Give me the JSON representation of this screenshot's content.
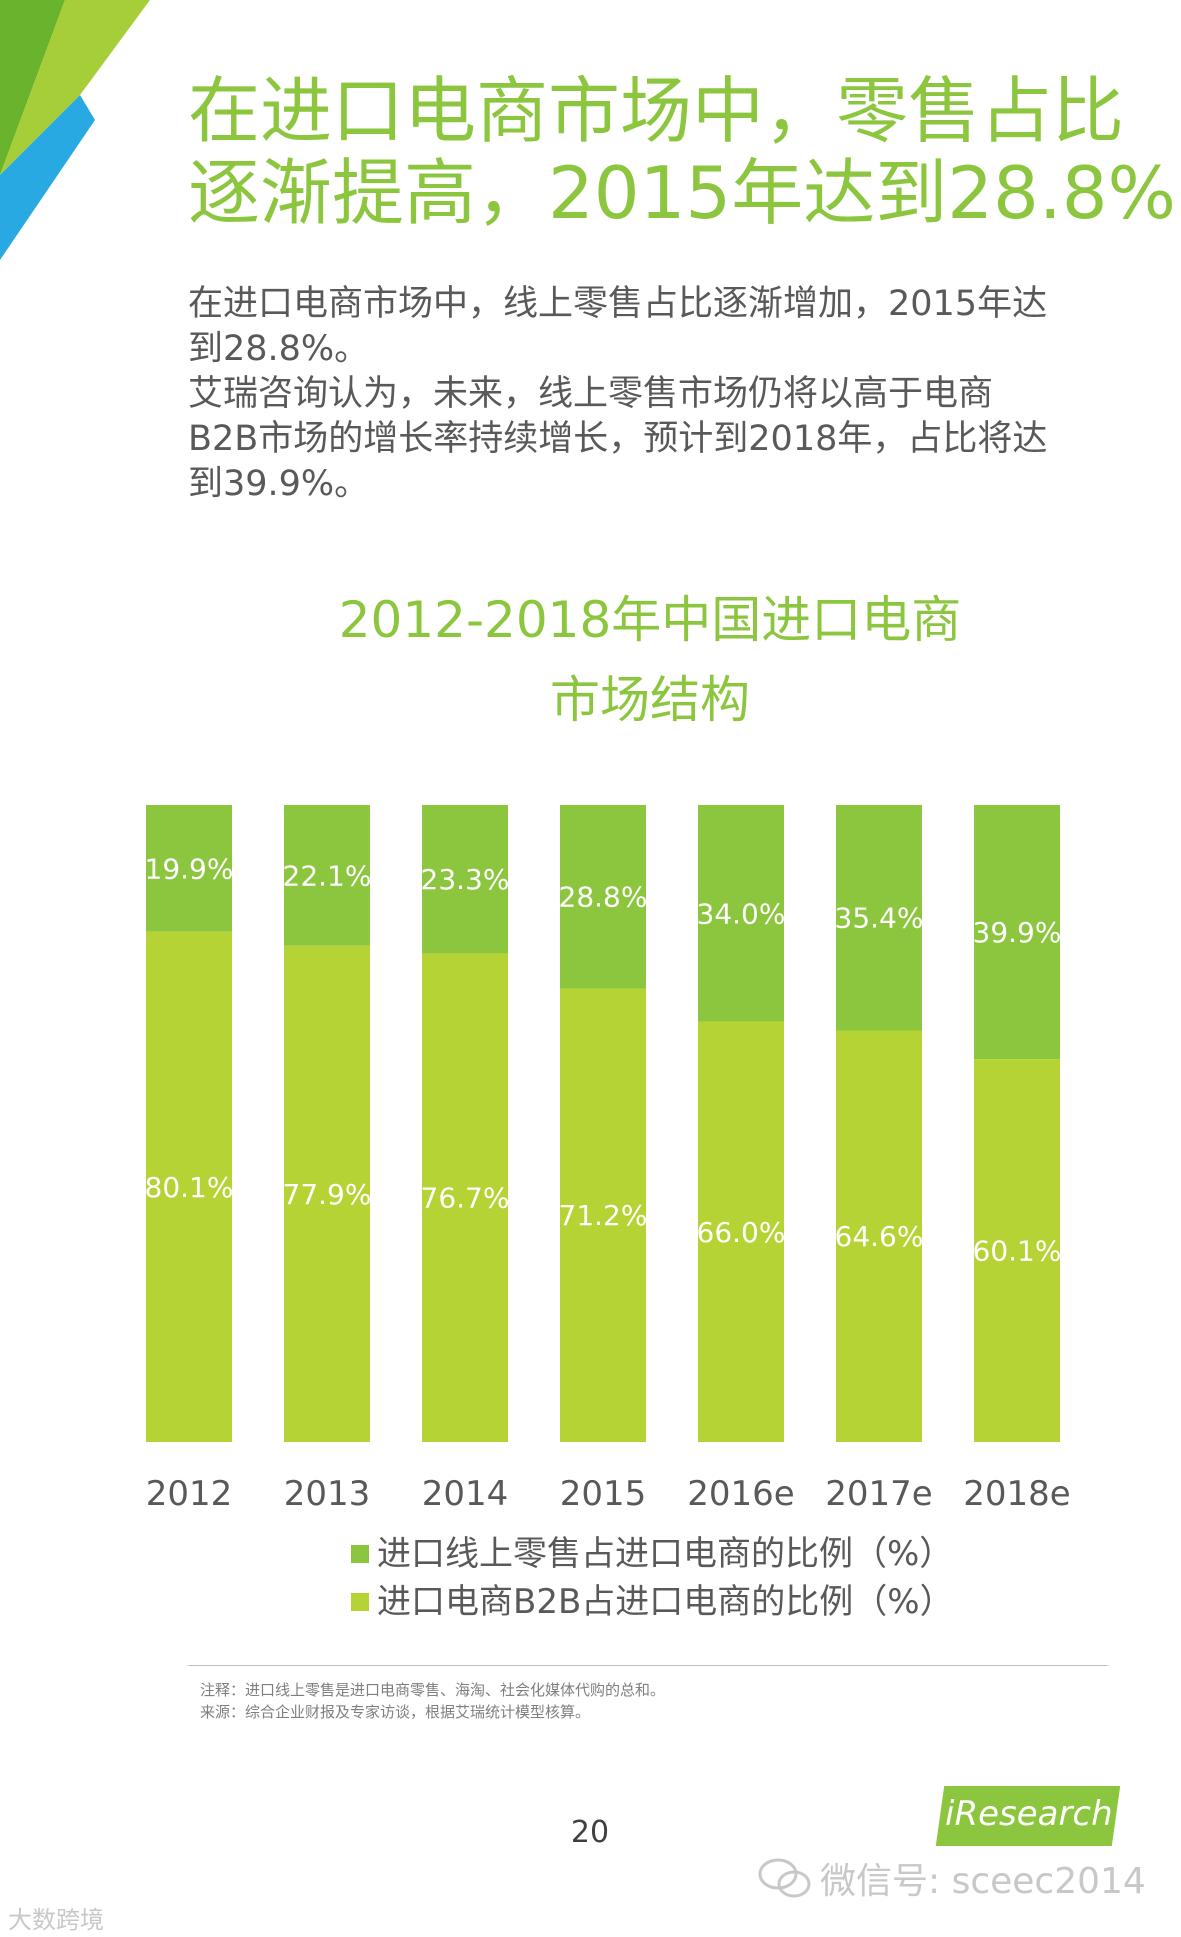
{
  "header": {
    "title_line1": "在进口电商市场中，零售占比",
    "title_line2": "逐渐提高，2015年达到28.8%"
  },
  "intro": {
    "line1": "在进口电商市场中，线上零售占比逐渐增加，2015年达",
    "line2": "到28.8%。",
    "line3": "艾瑞咨询认为，未来，线上零售市场仍将以高于电商",
    "line4": "B2B市场的增长率持续增长，预计到2018年，占比将达",
    "line5": "到39.9%。"
  },
  "footer": {
    "note_line1": "注释：进口线上零售是进口电商零售、海淘、社会化媒体代购的总和。",
    "note_line2": "来源：综合企业财报及专家访谈，根据艾瑞统计模型核算。",
    "page_number": "20",
    "logo_text": "iResearch",
    "watermark_text": "微信号: sceec2014",
    "bottom_left_text": "大数跨境"
  },
  "colors": {
    "accent": "#8cc63f",
    "corner_dark_green": "#6ab42d",
    "corner_blue": "#29a9e1",
    "retail_series": "#8cc63f",
    "b2b_series": "#b5d334",
    "body_text": "#595959"
  },
  "chart_data": {
    "type": "bar",
    "stacked": true,
    "title_line1": "2012-2018年中国进口电商",
    "title_line2": "市场结构",
    "categories": [
      "2012",
      "2013",
      "2014",
      "2015",
      "2016e",
      "2017e",
      "2018e"
    ],
    "series": [
      {
        "name": "进口线上零售占进口电商的比例（%）",
        "values": [
          19.9,
          22.1,
          23.3,
          28.8,
          34.0,
          35.4,
          39.9
        ],
        "labels": [
          "19.9%",
          "22.1%",
          "23.3%",
          "28.8%",
          "34.0%",
          "35.4%",
          "39.9%"
        ],
        "color": "#8cc63f"
      },
      {
        "name": "进口电商B2B占进口电商的比例（%）",
        "values": [
          80.1,
          77.9,
          76.7,
          71.2,
          66.0,
          64.6,
          60.1
        ],
        "labels": [
          "80.1%",
          "77.9%",
          "76.7%",
          "71.2%",
          "66.0%",
          "64.6%",
          "60.1%"
        ],
        "color": "#b5d334"
      }
    ],
    "ylim": [
      0,
      100
    ],
    "grid": false,
    "legend_position": "bottom",
    "xlabel": "",
    "ylabel": ""
  }
}
